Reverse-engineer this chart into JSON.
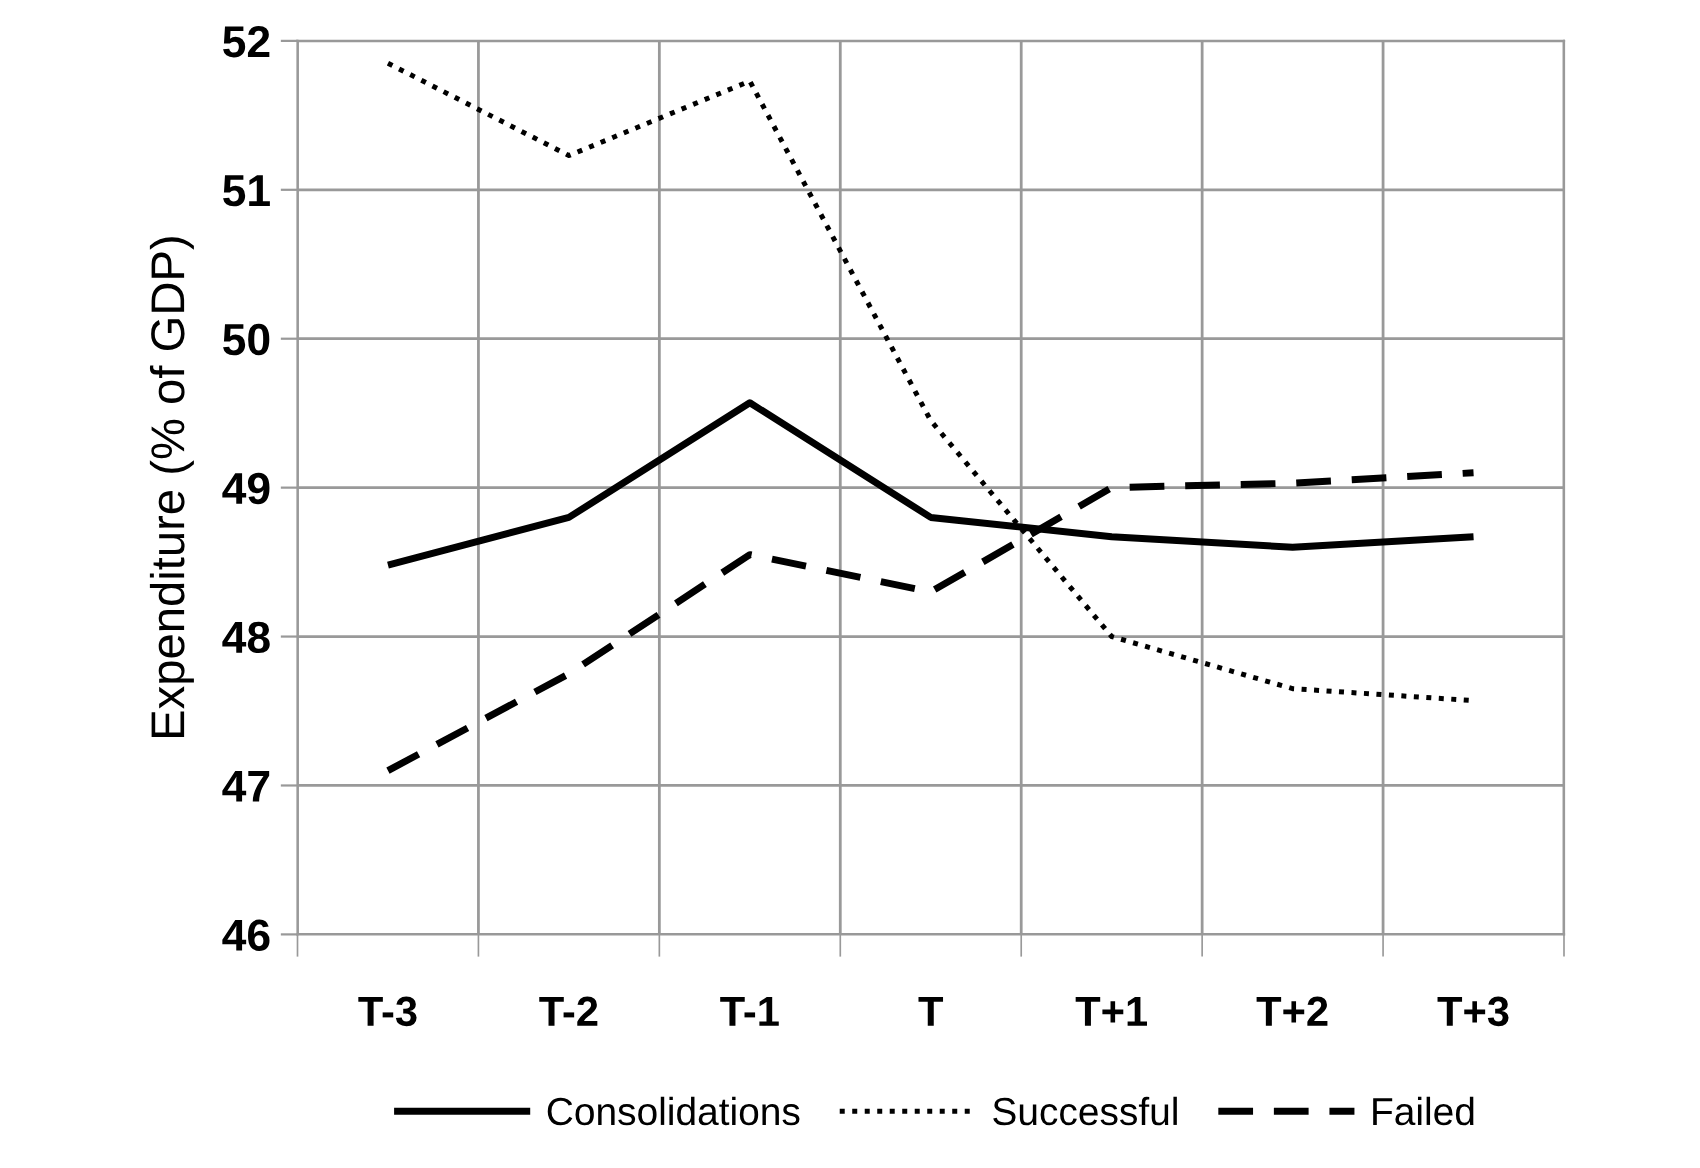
{
  "chart_data": {
    "type": "line",
    "ylabel": "Expenditure (% of GDP)",
    "categories": [
      "T-3",
      "T-2",
      "T-1",
      "T",
      "T+1",
      "T+2",
      "T+3"
    ],
    "series": [
      {
        "name": "Consolidations",
        "color": "#000000",
        "line_style": "solid",
        "values": [
          48.48,
          48.8,
          49.57,
          48.8,
          48.67,
          48.6,
          48.67
        ]
      },
      {
        "name": "Successful",
        "color": "#000000",
        "line_style": "dotted",
        "values": [
          51.85,
          51.23,
          51.73,
          49.45,
          48.0,
          47.65,
          47.57
        ]
      },
      {
        "name": "Failed",
        "color": "#000000",
        "line_style": "dashed",
        "values": [
          47.1,
          47.75,
          48.55,
          48.3,
          49.0,
          49.03,
          49.1
        ]
      }
    ],
    "ylim": [
      46,
      52
    ],
    "yticks": [
      46,
      47,
      48,
      49,
      50,
      51,
      52
    ],
    "grid": true,
    "legend": "bottom"
  }
}
